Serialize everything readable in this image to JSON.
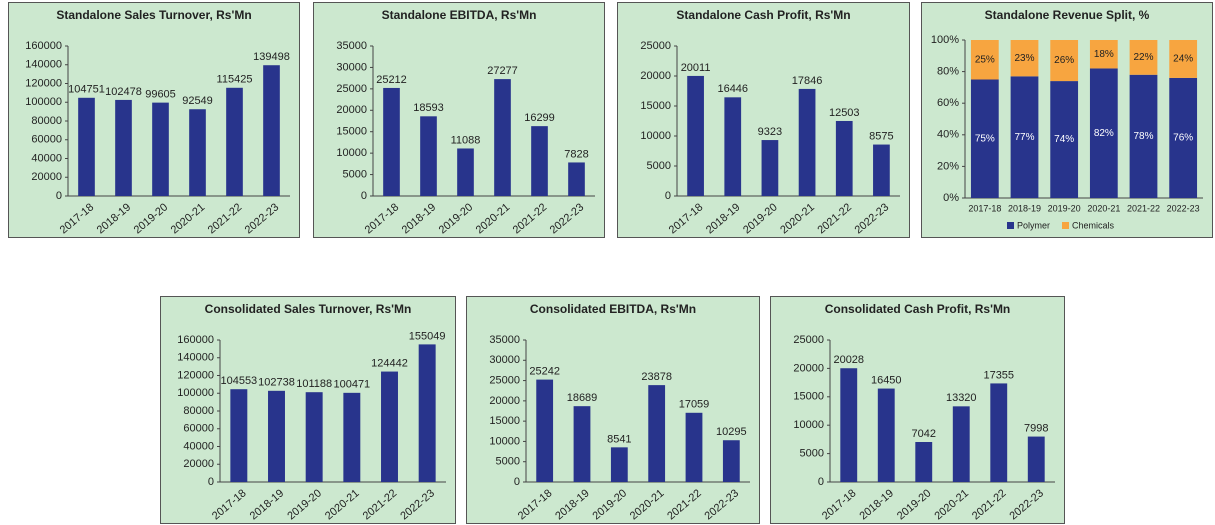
{
  "chart_data": [
    {
      "type": "bar",
      "title": "Standalone Sales Turnover, Rs'Mn",
      "categories": [
        "2017-18",
        "2018-19",
        "2019-20",
        "2020-21",
        "2021-22",
        "2022-23"
      ],
      "values": [
        104751,
        102478,
        99605,
        92549,
        115425,
        139498
      ],
      "color": "#28348c",
      "ylim": [
        0,
        160000
      ],
      "yticks": [
        0,
        20000,
        40000,
        60000,
        80000,
        100000,
        120000,
        140000,
        160000
      ]
    },
    {
      "type": "bar",
      "title": "Standalone  EBITDA, Rs'Mn",
      "categories": [
        "2017-18",
        "2018-19",
        "2019-20",
        "2020-21",
        "2021-22",
        "2022-23"
      ],
      "values": [
        25212,
        18593,
        11088,
        27277,
        16299,
        7828
      ],
      "color": "#28348c",
      "ylim": [
        0,
        35000
      ],
      "yticks": [
        0,
        5000,
        10000,
        15000,
        20000,
        25000,
        30000,
        35000
      ]
    },
    {
      "type": "bar",
      "title": "Standalone Cash Profit, Rs'Mn",
      "categories": [
        "2017-18",
        "2018-19",
        "2019-20",
        "2020-21",
        "2021-22",
        "2022-23"
      ],
      "values": [
        20011,
        16446,
        9323,
        17846,
        12503,
        8575
      ],
      "color": "#28348c",
      "ylim": [
        0,
        25000
      ],
      "yticks": [
        0,
        5000,
        10000,
        15000,
        20000,
        25000
      ]
    },
    {
      "type": "stacked_bar",
      "title": "Standalone Revenue Split, %",
      "categories": [
        "2017-18",
        "2018-19",
        "2019-20",
        "2020-21",
        "2021-22",
        "2022-23"
      ],
      "series": [
        {
          "name": "Polymer",
          "color": "#28348c",
          "values": [
            75,
            77,
            74,
            82,
            78,
            76
          ],
          "value_labels": [
            "75%",
            "77%",
            "74%",
            "82%",
            "78%",
            "76%"
          ]
        },
        {
          "name": "Chemicals",
          "color": "#f7a540",
          "values": [
            25,
            23,
            26,
            18,
            22,
            24
          ],
          "value_labels": [
            "25%",
            "23%",
            "26%",
            "18%",
            "22%",
            "24%"
          ]
        }
      ],
      "ylim": [
        0,
        100
      ],
      "yticks": [
        {
          "value": 0,
          "label": "0%"
        },
        {
          "value": 20,
          "label": "20%"
        },
        {
          "value": 40,
          "label": "40%"
        },
        {
          "value": 60,
          "label": "60%"
        },
        {
          "value": 80,
          "label": "80%"
        },
        {
          "value": 100,
          "label": "100%"
        }
      ],
      "legend": "bottom"
    },
    {
      "type": "bar",
      "title": "Consolidated Sales Turnover, Rs'Mn",
      "categories": [
        "2017-18",
        "2018-19",
        "2019-20",
        "2020-21",
        "2021-22",
        "2022-23"
      ],
      "values": [
        104553,
        102738,
        101188,
        100471,
        124442,
        155049
      ],
      "color": "#28348c",
      "ylim": [
        0,
        160000
      ],
      "yticks": [
        0,
        20000,
        40000,
        60000,
        80000,
        100000,
        120000,
        140000,
        160000
      ]
    },
    {
      "type": "bar",
      "title": "Consolidated  EBITDA, Rs'Mn",
      "categories": [
        "2017-18",
        "2018-19",
        "2019-20",
        "2020-21",
        "2021-22",
        "2022-23"
      ],
      "values": [
        25242,
        18689,
        8541,
        23878,
        17059,
        10295
      ],
      "color": "#28348c",
      "ylim": [
        0,
        35000
      ],
      "yticks": [
        0,
        5000,
        10000,
        15000,
        20000,
        25000,
        30000,
        35000
      ]
    },
    {
      "type": "bar",
      "title": "Consolidated Cash Profit, Rs'Mn",
      "categories": [
        "2017-18",
        "2018-19",
        "2019-20",
        "2020-21",
        "2021-22",
        "2022-23"
      ],
      "values": [
        20028,
        16450,
        7042,
        13320,
        17355,
        7998
      ],
      "color": "#28348c",
      "ylim": [
        0,
        25000
      ],
      "yticks": [
        0,
        5000,
        10000,
        15000,
        20000,
        25000
      ]
    }
  ]
}
